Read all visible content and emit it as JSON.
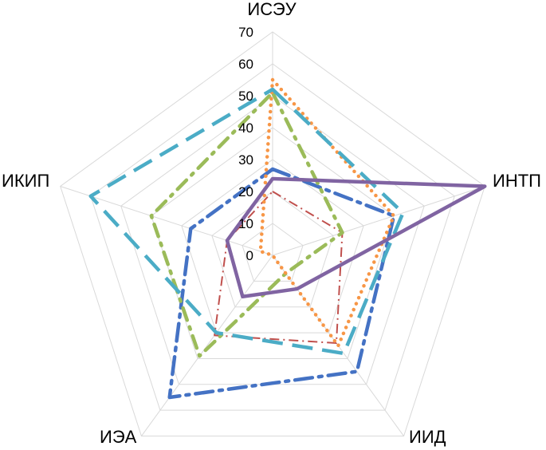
{
  "chart_data": {
    "type": "radar",
    "title": "",
    "axes": [
      "ИСЭУ",
      "ИНТП",
      "ИИД",
      "ИЭА",
      "ИКИП"
    ],
    "ticks": [
      "0",
      "10",
      "20",
      "30",
      "40",
      "50",
      "60",
      "70"
    ],
    "rlim": [
      0,
      70
    ],
    "grid": true,
    "legend": "none",
    "series": [
      {
        "values": [
          27,
          40,
          45,
          55,
          27
        ],
        "color": "#4472C4",
        "dash": "dashdot-long"
      },
      {
        "values": [
          20,
          23,
          34,
          31,
          15
        ],
        "color": "#C0504D",
        "dash": "dashdot-thin"
      },
      {
        "values": [
          51,
          23,
          7,
          39,
          40
        ],
        "color": "#9BBB59",
        "dash": "dashdot"
      },
      {
        "values": [
          55,
          40,
          35,
          0,
          4
        ],
        "color": "#F79646",
        "dash": "dotted"
      },
      {
        "values": [
          52,
          43,
          38,
          30,
          60
        ],
        "color": "#4BACC6",
        "dash": "dashed-long"
      },
      {
        "values": [
          24,
          70,
          13,
          16,
          15
        ],
        "color": "#8064A2",
        "dash": "solid"
      }
    ]
  }
}
